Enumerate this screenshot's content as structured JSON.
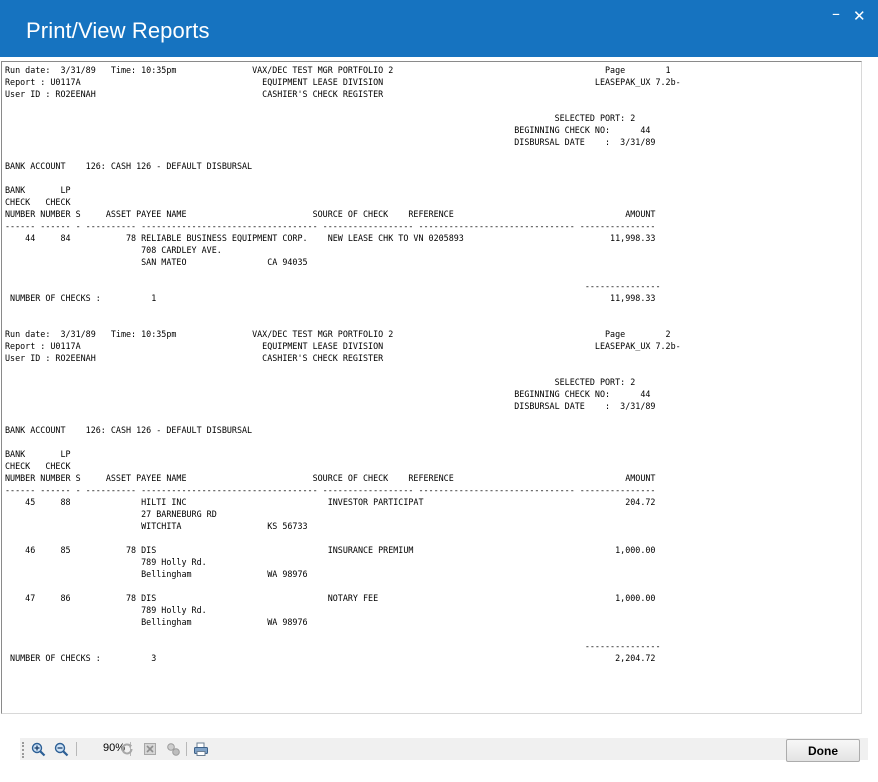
{
  "window": {
    "title": "Print/View Reports",
    "minimize_glyph": "–",
    "close_glyph": "✕"
  },
  "report": {
    "lines": [
      "Run date:  3/31/89   Time: 10:35pm               VAX/DEC TEST MGR PORTFOLIO 2                                          Page        1",
      "Report : U0117A                                    EQUIPMENT LEASE DIVISION                                          LEASEPAK_UX 7.2b-",
      "User ID : RO2EENAH                                 CASHIER'S CHECK REGISTER",
      "",
      "                                                                                                             SELECTED PORT: 2",
      "                                                                                                     BEGINNING CHECK NO:      44",
      "                                                                                                     DISBURSAL DATE    :  3/31/89",
      "",
      "BANK ACCOUNT    126: CASH 126 - DEFAULT DISBURSAL",
      "",
      "BANK       LP",
      "CHECK   CHECK",
      "NUMBER NUMBER S     ASSET PAYEE NAME                         SOURCE OF CHECK    REFERENCE                                  AMOUNT",
      "------ ------ - ---------- ----------------------------------- ------------------ ------------------------------- ---------------",
      "    44     84           78 RELIABLE BUSINESS EQUIPMENT CORP.    NEW LEASE CHK TO VN 0205893                             11,998.33",
      "                           708 CARDLEY AVE.",
      "                           SAN MATEO                CA 94035",
      "",
      "                                                                                                                   ---------------",
      " NUMBER OF CHECKS :          1                                                                                          11,998.33",
      "",
      "",
      "Run date:  3/31/89   Time: 10:35pm               VAX/DEC TEST MGR PORTFOLIO 2                                          Page        2",
      "Report : U0117A                                    EQUIPMENT LEASE DIVISION                                          LEASEPAK_UX 7.2b-",
      "User ID : RO2EENAH                                 CASHIER'S CHECK REGISTER",
      "",
      "                                                                                                             SELECTED PORT: 2",
      "                                                                                                     BEGINNING CHECK NO:      44",
      "                                                                                                     DISBURSAL DATE    :  3/31/89",
      "",
      "BANK ACCOUNT    126: CASH 126 - DEFAULT DISBURSAL",
      "",
      "BANK       LP",
      "CHECK   CHECK",
      "NUMBER NUMBER S     ASSET PAYEE NAME                         SOURCE OF CHECK    REFERENCE                                  AMOUNT",
      "------ ------ - ---------- ----------------------------------- ------------------ ------------------------------- ---------------",
      "    45     88              HILTI INC                            INVESTOR PARTICIPAT                                        204.72",
      "                           27 BARNEBURG RD",
      "                           WITCHITA                 KS 56733",
      "",
      "    46     85           78 DIS                                  INSURANCE PREMIUM                                        1,000.00",
      "                           789 Holly Rd.",
      "                           Bellingham               WA 98976",
      "",
      "    47     86           78 DIS                                  NOTARY FEE                                               1,000.00",
      "                           789 Holly Rd.",
      "                           Bellingham               WA 98976",
      "",
      "                                                                                                                   ---------------",
      " NUMBER OF CHECKS :          3                                                                                           2,204.72"
    ]
  },
  "toolbar": {
    "zoom_level": "90%",
    "icons": [
      "zoom-in-icon",
      "zoom-out-icon",
      "refresh-icon",
      "stop-icon",
      "export-icon",
      "print-icon"
    ]
  },
  "footer": {
    "done_label": "Done"
  },
  "colors": {
    "titlebar": "#1673c0",
    "title_text": "#ffffff",
    "report_text": "#000000",
    "toolbar_bg": "#f0f0f0"
  }
}
